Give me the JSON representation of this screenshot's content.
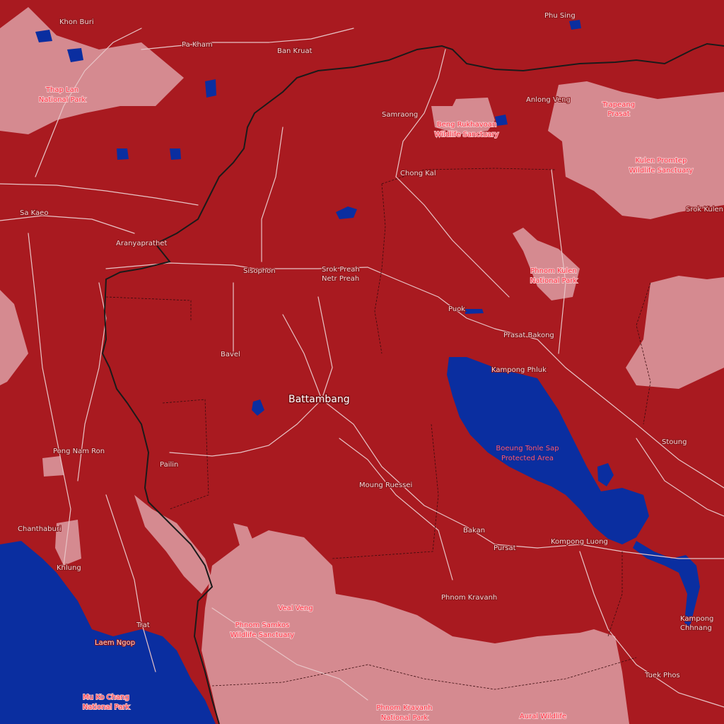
{
  "colors": {
    "land": "#a91a20",
    "protected_area": "#d58a90",
    "water": "#0a2ea0",
    "road": "#e8c4c6",
    "border": "#1a1a1a",
    "city_label": "#f0d4d4",
    "park_label": "#ff3344"
  },
  "labels": {
    "places": {
      "khon_buri": "Khon Buri",
      "phu_sing": "Phu Sing",
      "pa_kham": "Pa Kham",
      "ban_kruat": "Ban Kruat",
      "anlong_veng": "Anlong Veng",
      "samraong": "Samraong",
      "chong_kal": "Chong Kal",
      "sa_kaeo": "Sa Kaeo",
      "aranyaprathet": "Aranyaprathet",
      "sisophon": "Sisophon",
      "srok_preah_1": "Srok Preah",
      "srok_preah_2": "Netr Preah",
      "srok_kulen": "Srok Kulen",
      "puok": "Puok",
      "prasat_bakong": "Prasat Bakong",
      "bavel": "Bavel",
      "kampong_phluk": "Kampong Phluk",
      "battambang": "Battambang",
      "pong_nam_ron": "Pong Nam Ron",
      "pailin": "Pailin",
      "stoung": "Stoung",
      "moung_ruessei": "Moung Ruessei",
      "chanthaburi": "Chanthaburi",
      "khlung": "Khlung",
      "bakan": "Bakan",
      "pursat": "Pursat",
      "kompong_luong": "Kompong Luong",
      "phnom_kravanh": "Phnom Kravanh",
      "trat": "Trat",
      "laem_ngop": "Laem Ngop",
      "kampong_chhnang_1": "Kampong",
      "kampong_chhnang_2": "Chhnang",
      "tuek_phos": "Tuek Phos",
      "veal_veng": "Veal Veng"
    },
    "parks": {
      "thap_lan_1": "Thap Lan",
      "thap_lan_2": "National Park",
      "beng_rukhavoan_1": "Beng Rukhavoan",
      "beng_rukhavoan_2": "Wildlife Sanctuary",
      "trapeang_prasat_1": "Trapeang",
      "trapeang_prasat_2": "Prasat",
      "kulen_promtep_1": "Kulen Promtep",
      "kulen_promtep_2": "Wildlife Sanctuary",
      "phnom_kulen_1": "Phnom Kulen",
      "phnom_kulen_2": "National Park",
      "boeung_tonle_sap_1": "Boeung Tonle Sap",
      "boeung_tonle_sap_2": "Protected Area",
      "phnom_samkos_1": "Phnom Samkos",
      "phnom_samkos_2": "Wildlife Sanctuary",
      "mu_ko_chang_1": "Mu Ko Chang",
      "mu_ko_chang_2": "National Park",
      "phnom_kravanh_np_1": "Phnom Kravanh",
      "phnom_kravanh_np_2": "National Park",
      "aural_1": "Aural Wildlife"
    }
  }
}
